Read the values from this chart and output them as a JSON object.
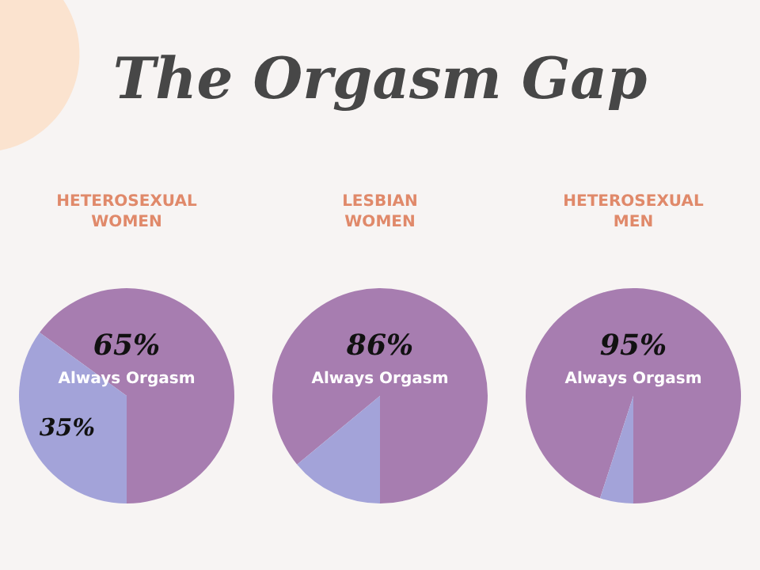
{
  "chart_data": [
    {
      "type": "pie",
      "title": "The Orgasm Gap",
      "subtitle": "HETEROSEXUAL WOMEN",
      "categories": [
        "Always Orgasm",
        null
      ],
      "values": [
        65,
        35
      ],
      "colors": [
        "#a77db0",
        "#a3a3d9"
      ],
      "value_labels": [
        "65%",
        "35%"
      ]
    },
    {
      "type": "pie",
      "subtitle": "LESBIAN WOMEN",
      "categories": [
        "Always Orgasm",
        null
      ],
      "values": [
        86,
        14
      ],
      "colors": [
        "#a77db0",
        "#a3a3d9"
      ],
      "value_labels": [
        "86%",
        null
      ]
    },
    {
      "type": "pie",
      "subtitle": "HETEROSEXUAL MEN",
      "categories": [
        "Always Orgasm",
        null
      ],
      "values": [
        95,
        5
      ],
      "colors": [
        "#a77db0",
        "#a3a3d9"
      ],
      "value_labels": [
        "95%",
        null
      ]
    }
  ]
}
